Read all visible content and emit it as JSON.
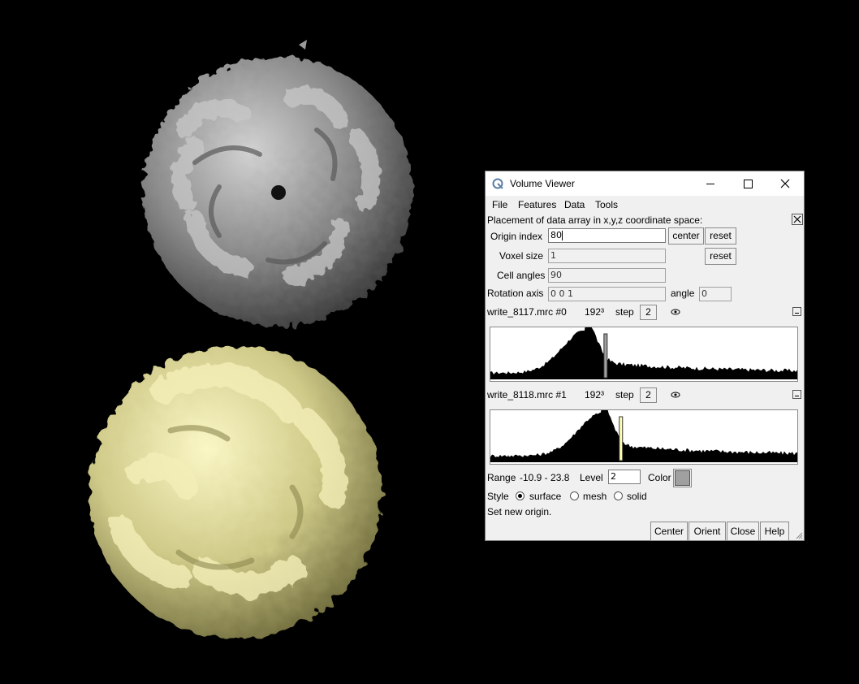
{
  "window": {
    "title": "Volume Viewer"
  },
  "menu": [
    "File",
    "Features",
    "Data",
    "Tools"
  ],
  "placement": {
    "heading": "Placement of data array in x,y,z coordinate space:",
    "origin_label": "Origin index",
    "origin_value": "80",
    "voxel_label": "Voxel size",
    "voxel_value": "1",
    "cell_label": "Cell angles",
    "cell_value": "90",
    "rotation_label": "Rotation axis",
    "rotation_value": "0 0 1",
    "angle_label": "angle",
    "angle_value": "0",
    "center_button": "center",
    "reset_button": "reset"
  },
  "datasets": [
    {
      "name": "write_8117.mrc #0",
      "size": "192³",
      "step_label": "step",
      "step": "2",
      "threshold_color": "#a0a0a0",
      "peak_fraction": 0.31,
      "threshold_fraction": 0.37
    },
    {
      "name": "write_8118.mrc #1",
      "size": "192³",
      "step_label": "step",
      "step": "2",
      "threshold_color": "#ffffb2",
      "peak_fraction": 0.36,
      "threshold_fraction": 0.42
    }
  ],
  "display": {
    "range_label": "Range",
    "range_value": "-10.9 - 23.8",
    "level_label": "Level",
    "level_value": "2",
    "color_label": "Color",
    "color_value": "#a0a0a0",
    "style_label": "Style",
    "styles": [
      "surface",
      "mesh",
      "solid"
    ],
    "selected_style": "surface"
  },
  "status": "Set new origin.",
  "buttons": [
    "Center",
    "Orient",
    "Close",
    "Help"
  ],
  "models": {
    "top_color": "#a9a9a9",
    "bottom_color": "#e6e2a2"
  }
}
